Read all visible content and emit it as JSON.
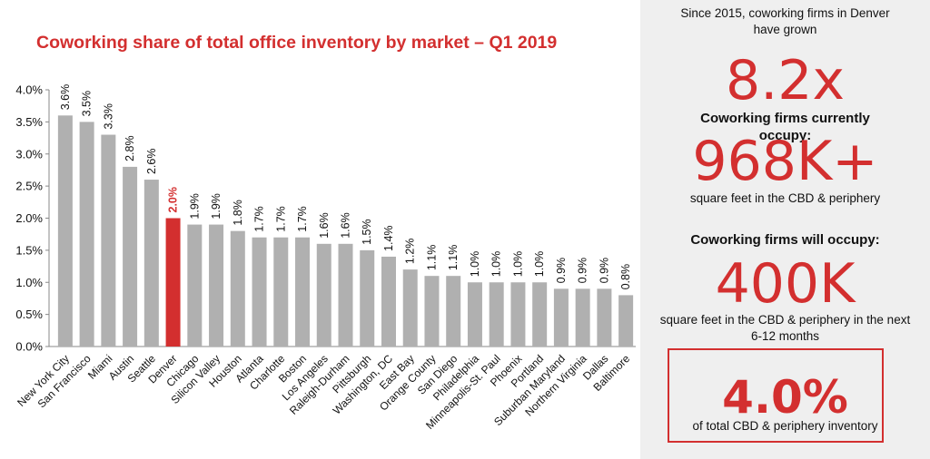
{
  "chart_data": {
    "type": "bar",
    "title": "Coworking share of total office inventory by market – Q1 2019",
    "categories": [
      "New York City",
      "San Francisco",
      "Miami",
      "Austin",
      "Seattle",
      "Denver",
      "Chicago",
      "Silicon Valley",
      "Houston",
      "Atlanta",
      "Charlotte",
      "Boston",
      "Los Angeles",
      "Raleigh-Durham",
      "Pittsburgh",
      "Washington, DC",
      "East Bay",
      "Orange County",
      "San Diego",
      "Philadelphia",
      "Minneapolis-St. Paul",
      "Phoenix",
      "Portland",
      "Suburban Maryland",
      "Northern Virginia",
      "Dallas",
      "Baltimore"
    ],
    "values": [
      3.6,
      3.5,
      3.3,
      2.8,
      2.6,
      2.0,
      1.9,
      1.9,
      1.8,
      1.7,
      1.7,
      1.7,
      1.6,
      1.6,
      1.5,
      1.4,
      1.2,
      1.1,
      1.1,
      1.0,
      1.0,
      1.0,
      1.0,
      0.9,
      0.9,
      0.9,
      0.8
    ],
    "labels": [
      "3.6%",
      "3.5%",
      "3.3%",
      "2.8%",
      "2.6%",
      "2.0%",
      "1.9%",
      "1.9%",
      "1.8%",
      "1.7%",
      "1.7%",
      "1.7%",
      "1.6%",
      "1.6%",
      "1.5%",
      "1.4%",
      "1.2%",
      "1.1%",
      "1.1%",
      "1.0%",
      "1.0%",
      "1.0%",
      "1.0%",
      "0.9%",
      "0.9%",
      "0.9%",
      "0.8%"
    ],
    "highlight": "Denver",
    "ylim": [
      0,
      4.0
    ],
    "yticks": [
      "0.0%",
      "0.5%",
      "1.0%",
      "1.5%",
      "2.0%",
      "2.5%",
      "3.0%",
      "3.5%",
      "4.0%"
    ],
    "grid": false,
    "colors": {
      "bar": "#b0b0b0",
      "highlight": "#d32f2f",
      "axis": "#888888"
    }
  },
  "panel": {
    "intro": "Since 2015, coworking firms in Denver have grown",
    "growth": "8.2x",
    "current_label": "Coworking firms currently occupy:",
    "current_value": "968K+",
    "current_sub": "square feet in the CBD  & periphery",
    "future_label": "Coworking firms will occupy:",
    "future_value": "400K",
    "future_sub": "square feet in the CBD  & periphery in the next 6-12 months",
    "share_value": "4.0%",
    "share_sub": "of total CBD & periphery inventory"
  }
}
